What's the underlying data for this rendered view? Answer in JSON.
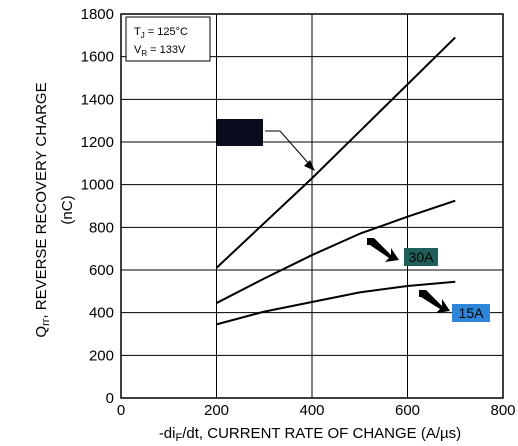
{
  "chart_data": {
    "type": "line",
    "xlabel": {
      "pre": "-di",
      "sub": "F",
      "post": "/dt, CURRENT RATE OF CHANGE (A/µs)"
    },
    "ylabel": {
      "q": "Q",
      "sub": "rr",
      "line1": ", REVERSE RECOVERY CHARGE",
      "line2": "(nC)"
    },
    "xlim": [
      0,
      800
    ],
    "ylim": [
      0,
      1800
    ],
    "xticks": [
      "0",
      "200",
      "400",
      "600",
      "800"
    ],
    "yticks": [
      "0",
      "200",
      "400",
      "600",
      "800",
      "1000",
      "1200",
      "1400",
      "1600",
      "1800"
    ],
    "grid": true,
    "conditions": {
      "tj": {
        "pre": "T",
        "sub": "J",
        "post": " = 125°C"
      },
      "vr": {
        "pre": "V",
        "sub": "R",
        "post": " = 133V"
      }
    },
    "series": [
      {
        "name": "",
        "label_bg": "#0b0b1e",
        "label_fg": "#ffffff",
        "x": [
          200,
          300,
          400,
          500,
          600,
          700
        ],
        "y": [
          610,
          820,
          1030,
          1250,
          1470,
          1690
        ]
      },
      {
        "name": "30A",
        "label_bg": "#1e5f5a",
        "label_fg": "#000000",
        "x": [
          200,
          300,
          400,
          500,
          600,
          700
        ],
        "y": [
          445,
          560,
          670,
          770,
          850,
          925
        ]
      },
      {
        "name": "15A",
        "label_bg": "#2f86d8",
        "label_fg": "#000000",
        "x": [
          200,
          300,
          400,
          500,
          600,
          700
        ],
        "y": [
          345,
          405,
          450,
          495,
          525,
          545
        ]
      }
    ]
  }
}
